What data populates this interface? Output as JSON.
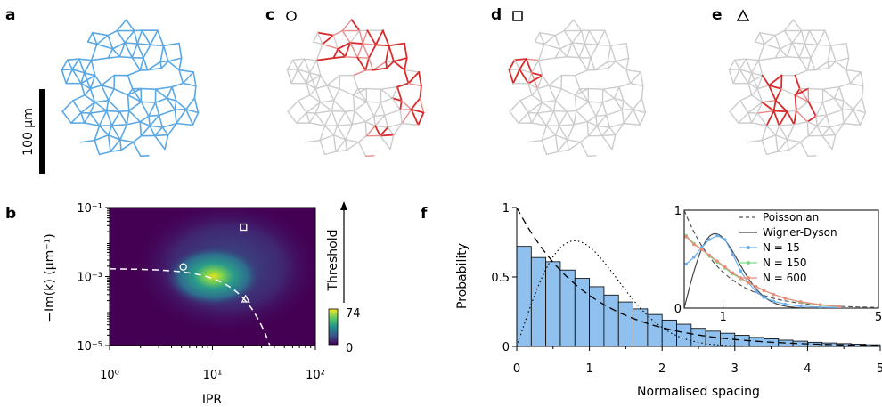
{
  "panels": {
    "a": {
      "label": "a",
      "scale_bar": "100  µm",
      "network_color": "#5aa8e6"
    },
    "c": {
      "label": "c",
      "marker": "circle",
      "highlight_color": "#d92b2b"
    },
    "d": {
      "label": "d",
      "marker": "square",
      "highlight_color": "#d92b2b"
    },
    "e": {
      "label": "e",
      "marker": "triangle",
      "highlight_color": "#d92b2b"
    },
    "b": {
      "label": "b"
    },
    "f": {
      "label": "f"
    }
  },
  "chart_data": [
    {
      "id": "b",
      "type": "heatmap",
      "xlabel": "IPR",
      "ylabel": "−Im(k) (µm⁻¹)",
      "x_scale": "log",
      "y_scale": "log",
      "xlim": [
        1,
        100
      ],
      "ylim": [
        1e-05,
        0.1
      ],
      "x_ticks": [
        "10⁰",
        "10¹",
        "10²"
      ],
      "y_ticks": [
        "10⁻¹",
        "10⁻³",
        "10⁻⁵"
      ],
      "colorbar": {
        "label": "Threshold",
        "min": "0",
        "max": "74"
      },
      "markers": [
        {
          "shape": "circle",
          "x": 5.2,
          "y": 0.0019
        },
        {
          "shape": "square",
          "x": 20,
          "y": 0.027
        },
        {
          "shape": "triangle",
          "x": 21,
          "y": 0.00022
        }
      ],
      "dashed_curve": "white"
    },
    {
      "id": "f",
      "type": "bar",
      "xlabel": "Normalised spacing",
      "ylabel": "Probability",
      "xlim": [
        0,
        5
      ],
      "ylim": [
        0,
        1
      ],
      "x_ticks": [
        "0",
        "0.5",
        "1",
        "1.5",
        "2",
        "2.5",
        "3",
        "3.5",
        "4",
        "4.5",
        "5"
      ],
      "y_ticks": [
        "0",
        "0.5",
        "1"
      ],
      "bin_width": 0.2,
      "bins_start": [
        0,
        0.2,
        0.4,
        0.6,
        0.8,
        1.0,
        1.2,
        1.4,
        1.6,
        1.8,
        2.0,
        2.2,
        2.4,
        2.6,
        2.8,
        3.0,
        3.2,
        3.4,
        3.6,
        3.8,
        4.0,
        4.2,
        4.4,
        4.6,
        4.8
      ],
      "values": [
        0.72,
        0.64,
        0.61,
        0.55,
        0.49,
        0.43,
        0.37,
        0.32,
        0.27,
        0.23,
        0.19,
        0.16,
        0.13,
        0.11,
        0.095,
        0.08,
        0.065,
        0.055,
        0.045,
        0.038,
        0.03,
        0.025,
        0.02,
        0.016,
        0.012
      ],
      "bar_color": "#8fc0ee",
      "curves": [
        "Poissonian (dashed)",
        "Wigner-Dyson (dotted)"
      ],
      "inset": {
        "xlim": [
          0,
          5
        ],
        "ylim": [
          0,
          1
        ],
        "x_ticks": [
          "1",
          "5"
        ],
        "y_ticks": [
          "0",
          "1"
        ],
        "legend": [
          {
            "label": "Poissonian",
            "color": "#555555",
            "style": "dashed"
          },
          {
            "label": "Wigner-Dyson",
            "color": "#444444",
            "style": "solid"
          },
          {
            "label": "N = 15",
            "color": "#6aaef0",
            "style": "markers"
          },
          {
            "label": "N = 150",
            "color": "#7ed98a",
            "style": "markers"
          },
          {
            "label": "N = 600",
            "color": "#f08a78",
            "style": "markers"
          }
        ],
        "series": [
          {
            "name": "N = 15",
            "x": [
              0.05,
              0.25,
              0.45,
              0.65,
              0.85,
              1.05,
              1.25,
              1.45,
              1.65,
              1.85,
              2.05,
              2.3,
              2.6,
              3.0,
              3.5,
              4.0
            ],
            "values": [
              0.45,
              0.52,
              0.62,
              0.7,
              0.74,
              0.7,
              0.55,
              0.38,
              0.26,
              0.17,
              0.11,
              0.07,
              0.04,
              0.02,
              0.01,
              0.005
            ]
          },
          {
            "name": "N = 150",
            "x": [
              0.05,
              0.25,
              0.45,
              0.65,
              0.85,
              1.05,
              1.25,
              1.45,
              1.65,
              1.85,
              2.05,
              2.3,
              2.6,
              3.0,
              3.5,
              4.0
            ],
            "values": [
              0.74,
              0.66,
              0.6,
              0.53,
              0.47,
              0.41,
              0.35,
              0.3,
              0.26,
              0.22,
              0.18,
              0.14,
              0.1,
              0.06,
              0.03,
              0.015
            ]
          },
          {
            "name": "N = 600",
            "x": [
              0.05,
              0.25,
              0.45,
              0.65,
              0.85,
              1.05,
              1.25,
              1.45,
              1.65,
              1.85,
              2.05,
              2.3,
              2.6,
              3.0,
              3.5,
              4.0
            ],
            "values": [
              0.73,
              0.65,
              0.6,
              0.54,
              0.48,
              0.42,
              0.36,
              0.31,
              0.26,
              0.22,
              0.18,
              0.14,
              0.1,
              0.065,
              0.035,
              0.016
            ]
          }
        ]
      }
    }
  ]
}
